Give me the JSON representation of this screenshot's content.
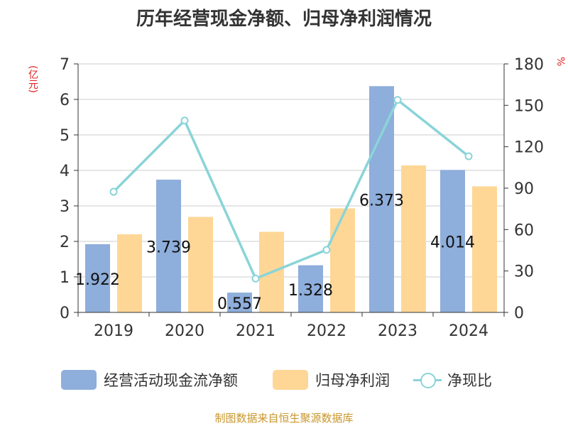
{
  "title": "历年经营现金净额、归母净利润情况",
  "unit_left": "(亿元)",
  "unit_right": "%",
  "source": "制图数据来自恒生聚源数据库",
  "colors": {
    "operating_cash": "#8eaedb",
    "net_profit": "#fed796",
    "ratio_line": "#8ad4d8",
    "unit_text": "#e02020",
    "source_text": "#c8962b"
  },
  "chart_data": {
    "type": "bar",
    "title": "历年经营现金净额、归母净利润情况",
    "categories": [
      "2019",
      "2020",
      "2021",
      "2022",
      "2023",
      "2024"
    ],
    "series": [
      {
        "name": "经营活动现金流净额",
        "type": "bar",
        "axis": "left",
        "values": [
          1.922,
          3.739,
          0.557,
          1.328,
          6.373,
          4.014
        ],
        "labels": [
          "1.922",
          "3.739",
          "0.557",
          "1.328",
          "6.373",
          "4.014"
        ]
      },
      {
        "name": "归母净利润",
        "type": "bar",
        "axis": "left",
        "values": [
          2.2,
          2.69,
          2.27,
          2.93,
          4.14,
          3.55
        ]
      },
      {
        "name": "净现比",
        "type": "line",
        "axis": "right",
        "values": [
          87.4,
          139.0,
          24.5,
          45.3,
          153.9,
          113.1
        ]
      }
    ],
    "y_left": {
      "label": "(亿元)",
      "min": 0,
      "max": 7,
      "ticks": [
        0,
        1,
        2,
        3,
        4,
        5,
        6,
        7
      ]
    },
    "y_right": {
      "label": "%",
      "min": 0,
      "max": 180,
      "ticks": [
        0,
        30,
        60,
        90,
        120,
        150,
        180
      ]
    },
    "grid": true,
    "legend_position": "bottom"
  }
}
